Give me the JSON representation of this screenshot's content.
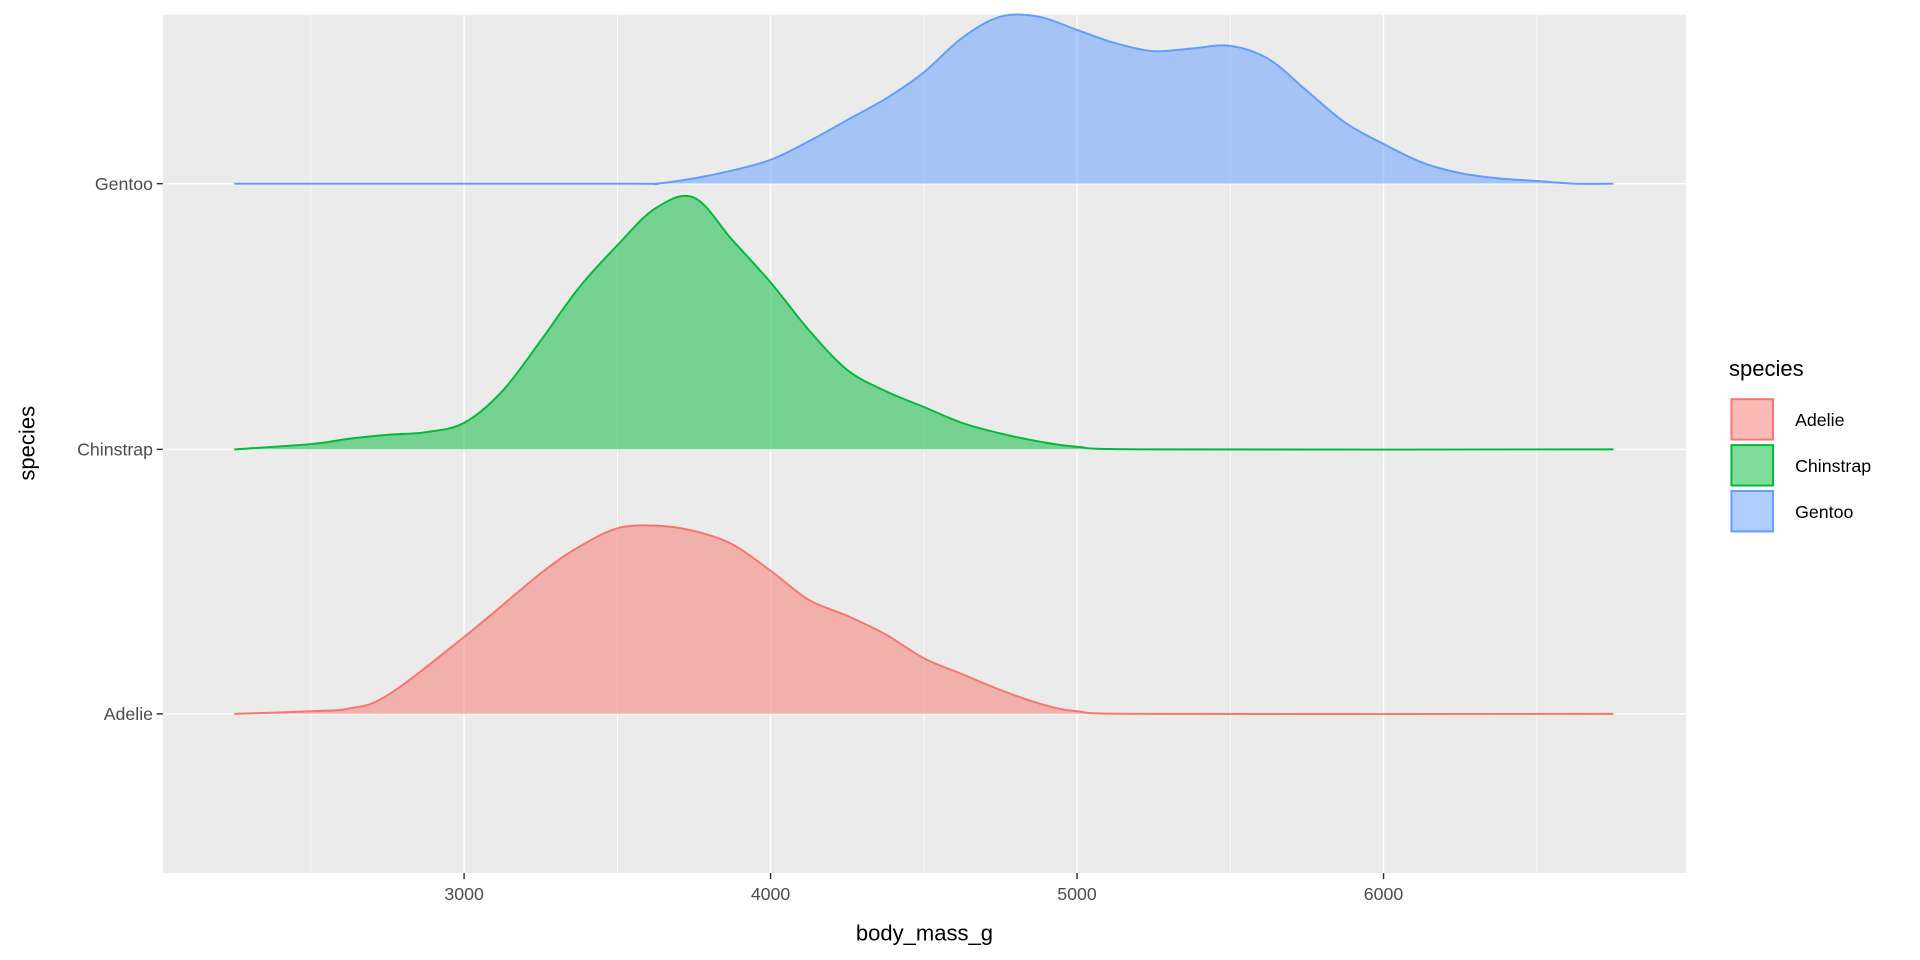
{
  "chart_data": {
    "type": "area",
    "subtype": "ridgeline-density",
    "title": "",
    "xlabel": "body_mass_g",
    "ylabel": "species",
    "xlim": [
      2050,
      7000
    ],
    "x_ticks": [
      3000,
      4000,
      5000,
      6000
    ],
    "x_tick_labels": [
      "3000",
      "4000",
      "5000",
      "6000"
    ],
    "y_categories": [
      "Adelie",
      "Chinstrap",
      "Gentoo"
    ],
    "density_units": "scaled height, 1 = spacing between species rows",
    "grid": true,
    "legend": {
      "title": "species",
      "position": "right",
      "entries": [
        "Adelie",
        "Chinstrap",
        "Gentoo"
      ]
    },
    "series": [
      {
        "name": "Adelie",
        "color": "#F8766D",
        "x": [
          2250,
          2500,
          2625,
          2750,
          3000,
          3250,
          3375,
          3500,
          3625,
          3750,
          3875,
          4000,
          4125,
          4250,
          4375,
          4500,
          4625,
          4750,
          4875,
          5000,
          5250,
          6750
        ],
        "density": [
          0,
          0.01,
          0.02,
          0.07,
          0.29,
          0.53,
          0.63,
          0.7,
          0.71,
          0.69,
          0.64,
          0.54,
          0.43,
          0.37,
          0.3,
          0.21,
          0.15,
          0.09,
          0.04,
          0.01,
          0,
          0
        ]
      },
      {
        "name": "Chinstrap",
        "color": "#00BA38",
        "x": [
          2250,
          2500,
          2625,
          2750,
          2875,
          3000,
          3125,
          3250,
          3375,
          3500,
          3625,
          3750,
          3875,
          4000,
          4125,
          4250,
          4375,
          4500,
          4625,
          4750,
          4875,
          5000,
          5250,
          6750
        ],
        "density": [
          0,
          0.02,
          0.04,
          0.055,
          0.065,
          0.1,
          0.22,
          0.41,
          0.61,
          0.77,
          0.91,
          0.95,
          0.79,
          0.63,
          0.45,
          0.3,
          0.22,
          0.16,
          0.1,
          0.06,
          0.03,
          0.01,
          0,
          0
        ]
      },
      {
        "name": "Gentoo",
        "color": "#619CFF",
        "x": [
          2250,
          3500,
          3625,
          3750,
          3875,
          4000,
          4125,
          4250,
          4375,
          4500,
          4625,
          4750,
          4875,
          5000,
          5125,
          5250,
          5375,
          5500,
          5625,
          5750,
          5875,
          6000,
          6125,
          6250,
          6375,
          6500,
          6625,
          6750
        ],
        "density": [
          0,
          0,
          0,
          0.02,
          0.05,
          0.09,
          0.16,
          0.24,
          0.32,
          0.42,
          0.55,
          0.63,
          0.63,
          0.58,
          0.53,
          0.5,
          0.51,
          0.52,
          0.47,
          0.35,
          0.23,
          0.15,
          0.08,
          0.04,
          0.02,
          0.01,
          0,
          0
        ]
      }
    ]
  }
}
